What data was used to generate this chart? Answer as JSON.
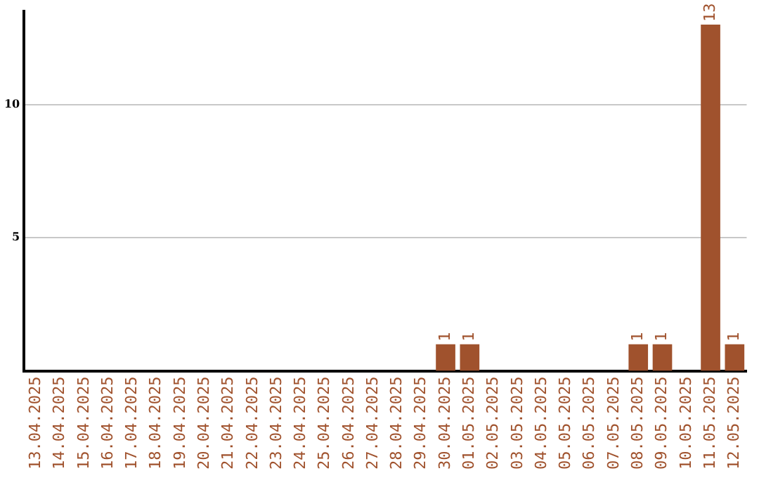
{
  "chart_data": {
    "type": "bar",
    "categories": [
      "13.04.2025",
      "14.04.2025",
      "15.04.2025",
      "16.04.2025",
      "17.04.2025",
      "18.04.2025",
      "19.04.2025",
      "20.04.2025",
      "21.04.2025",
      "22.04.2025",
      "23.04.2025",
      "24.04.2025",
      "25.04.2025",
      "26.04.2025",
      "27.04.2025",
      "28.04.2025",
      "29.04.2025",
      "30.04.2025",
      "01.05.2025",
      "02.05.2025",
      "03.05.2025",
      "04.05.2025",
      "05.05.2025",
      "06.05.2025",
      "07.05.2025",
      "08.05.2025",
      "09.05.2025",
      "10.05.2025",
      "11.05.2025",
      "12.05.2025"
    ],
    "values": [
      0,
      0,
      0,
      0,
      0,
      0,
      0,
      0,
      0,
      0,
      0,
      0,
      0,
      0,
      0,
      0,
      0,
      1,
      1,
      0,
      0,
      0,
      0,
      0,
      0,
      1,
      1,
      0,
      13,
      1
    ],
    "value_labels": [
      null,
      null,
      null,
      null,
      null,
      null,
      null,
      null,
      null,
      null,
      null,
      null,
      null,
      null,
      null,
      null,
      null,
      "1",
      "1",
      null,
      null,
      null,
      null,
      null,
      null,
      "1",
      "1",
      null,
      "13",
      "1"
    ],
    "color": "#a0522d",
    "ylim": [
      0,
      13.5
    ],
    "yticks": [
      5,
      10
    ],
    "grid": "y"
  }
}
